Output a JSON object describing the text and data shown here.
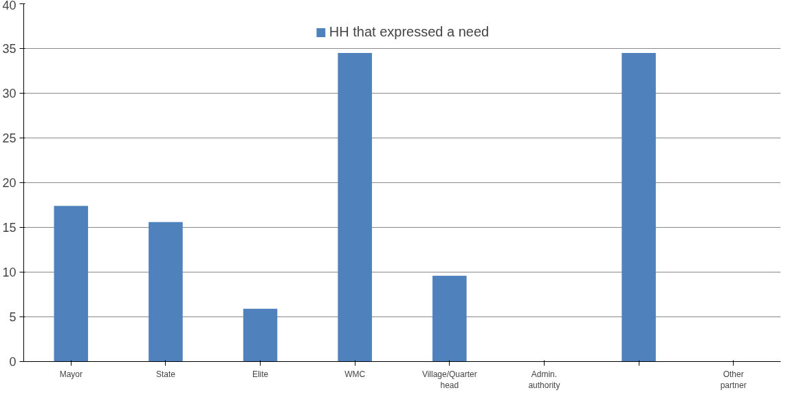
{
  "chart_data": {
    "type": "bar",
    "categories": [
      "Mayor",
      "State",
      "Elite",
      "WMC",
      "Village/Quarter head",
      "Admin. authority",
      null,
      "Other partner"
    ],
    "series": [
      {
        "name": "HH that expressed a need",
        "color": "#4f81bd",
        "values": [
          17.4,
          15.6,
          5.9,
          34.5,
          9.6,
          0,
          34.5,
          0
        ]
      }
    ],
    "ylim": [
      0,
      40
    ],
    "yticks": [
      0,
      5,
      10,
      15,
      20,
      25,
      30,
      35,
      40
    ],
    "grid": "y",
    "legend": "top"
  }
}
